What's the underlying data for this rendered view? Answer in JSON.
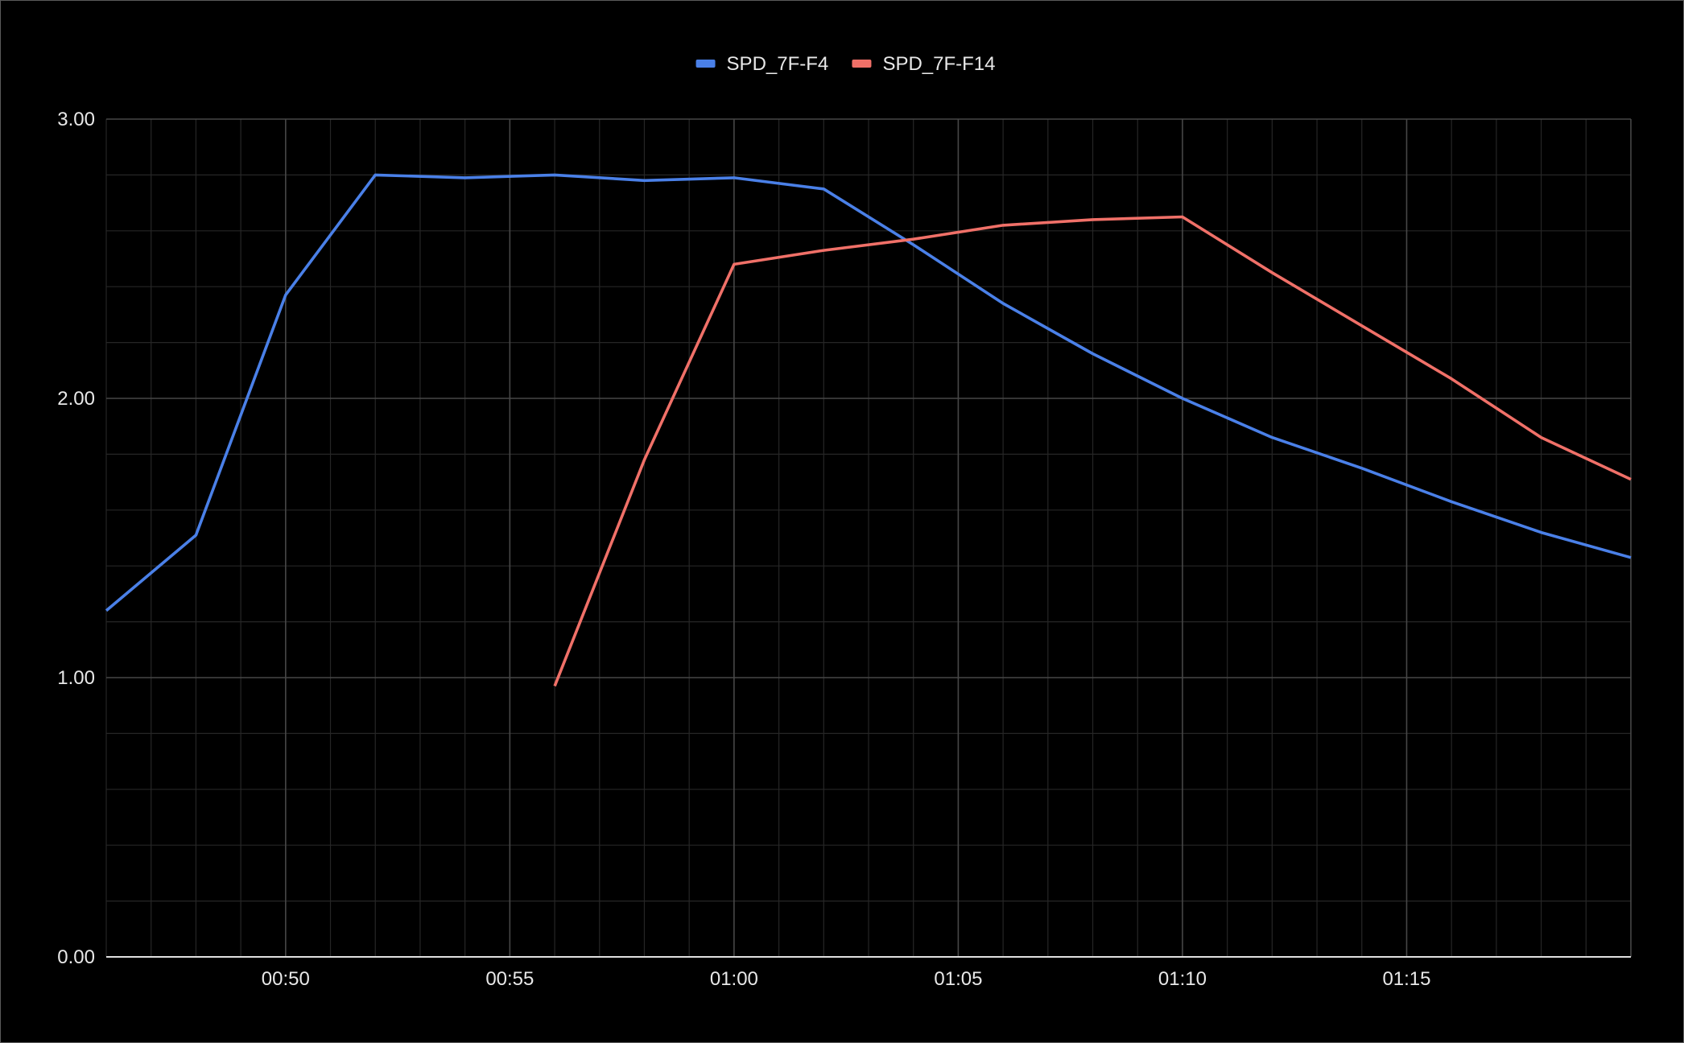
{
  "chart_data": {
    "type": "line",
    "title": "",
    "xlabel": "",
    "ylabel": "",
    "x_unit": "minutes",
    "x": [
      "00:46",
      "00:48",
      "00:50",
      "00:52",
      "00:54",
      "00:56",
      "00:58",
      "01:00",
      "01:02",
      "01:04",
      "01:06",
      "01:08",
      "01:10",
      "01:12",
      "01:14",
      "01:16",
      "01:18",
      "01:20"
    ],
    "series": [
      {
        "name": "SPD_7F-F4",
        "color": "#4a80e8",
        "values": [
          1.24,
          1.51,
          2.37,
          2.8,
          2.79,
          2.8,
          2.78,
          2.79,
          2.75,
          2.55,
          2.34,
          2.16,
          2.0,
          1.86,
          1.75,
          1.63,
          1.52,
          1.43
        ]
      },
      {
        "name": "SPD_7F-F14",
        "color": "#f07068",
        "values": [
          null,
          null,
          null,
          null,
          null,
          0.97,
          1.78,
          2.48,
          2.53,
          2.57,
          2.62,
          2.64,
          2.65,
          2.45,
          2.26,
          2.07,
          1.86,
          1.71
        ]
      }
    ],
    "x_ticks": [
      "00:50",
      "00:55",
      "01:00",
      "01:05",
      "01:10",
      "01:15"
    ],
    "y_ticks": [
      "0.00",
      "1.00",
      "2.00",
      "3.00"
    ],
    "xlim": [
      "00:46",
      "01:20"
    ],
    "ylim": [
      0,
      3
    ],
    "grid": true,
    "legend_position": "top-center",
    "background": "#000000"
  }
}
